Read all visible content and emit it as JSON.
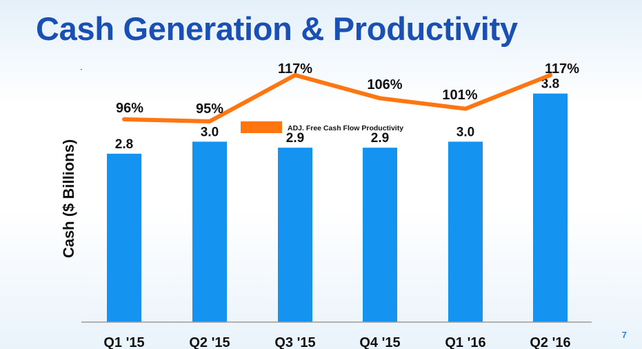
{
  "slide": {
    "title": "Cash Generation & Productivity",
    "page_number": "7"
  },
  "colors": {
    "title": "#1a4fb4",
    "bar": "#1593f0",
    "line": "#ff7611",
    "text": "#111111"
  },
  "chart_data": {
    "type": "bar",
    "title": "",
    "xlabel": "",
    "ylabel": "Cash ($ Billions)",
    "categories": [
      "Q1 '15",
      "Q2 '15",
      "Q3 '15",
      "Q4 '15",
      "Q1 '16",
      "Q2 '16"
    ],
    "ylim": [
      0,
      4.15
    ],
    "grid": false,
    "series": [
      {
        "name": "",
        "type": "bar",
        "values": [
          2.8,
          3.0,
          2.9,
          2.9,
          3.0,
          3.8
        ],
        "labels": [
          "2.8",
          "3.0",
          "2.9",
          "2.9",
          "3.0",
          "3.8"
        ]
      },
      {
        "name": "ADJ. Free Cash Flow Productivity",
        "type": "line",
        "values": [
          96,
          95,
          117,
          106,
          101,
          117
        ],
        "labels": [
          "96%",
          "95%",
          "117%",
          "106%",
          "101%",
          "117%"
        ],
        "ylim": [
          80,
          120
        ]
      }
    ],
    "legend": {
      "placement": "top-center",
      "entries": [
        "ADJ. Free Cash Flow Productivity"
      ]
    }
  }
}
